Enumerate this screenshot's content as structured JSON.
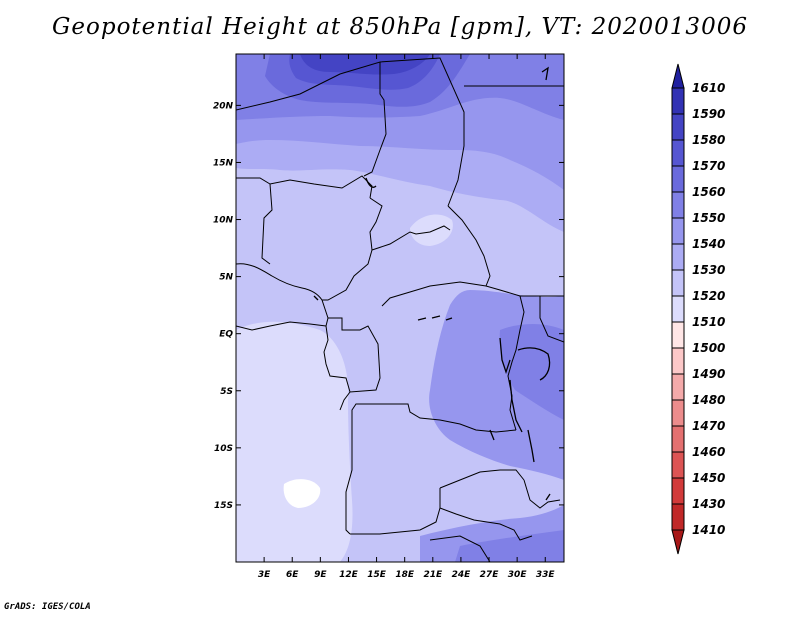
{
  "title": "Geopotential Height at 850hPa [gpm], VT: 2020013006",
  "footer": "GrADS: IGES/COLA",
  "map": {
    "variable": "Geopotential Height",
    "level": "850hPa",
    "units": "gpm",
    "valid_time": "2020013006",
    "lon_range": [
      0,
      35
    ],
    "lat_range": [
      -20,
      24.5
    ],
    "x_ticks": [
      {
        "value": 3,
        "label": "3E"
      },
      {
        "value": 6,
        "label": "6E"
      },
      {
        "value": 9,
        "label": "9E"
      },
      {
        "value": 12,
        "label": "12E"
      },
      {
        "value": 15,
        "label": "15E"
      },
      {
        "value": 18,
        "label": "18E"
      },
      {
        "value": 21,
        "label": "21E"
      },
      {
        "value": 24,
        "label": "24E"
      },
      {
        "value": 27,
        "label": "27E"
      },
      {
        "value": 30,
        "label": "30E"
      },
      {
        "value": 33,
        "label": "33E"
      }
    ],
    "y_ticks": [
      {
        "value": 20,
        "label": "20N"
      },
      {
        "value": 15,
        "label": "15N"
      },
      {
        "value": 10,
        "label": "10N"
      },
      {
        "value": 5,
        "label": "5N"
      },
      {
        "value": 0,
        "label": "EQ"
      },
      {
        "value": -5,
        "label": "5S"
      },
      {
        "value": -10,
        "label": "10S"
      },
      {
        "value": -15,
        "label": "15S"
      }
    ]
  },
  "colorbar": {
    "labels": [
      "1610",
      "1590",
      "1580",
      "1570",
      "1560",
      "1550",
      "1540",
      "1530",
      "1520",
      "1510",
      "1500",
      "1490",
      "1480",
      "1470",
      "1460",
      "1450",
      "1430",
      "1410"
    ],
    "colors_top_to_bottom": [
      "#2020a0",
      "#3232b4",
      "#4444c4",
      "#5656d2",
      "#6a6adc",
      "#8080e6",
      "#9696ee",
      "#acacf4",
      "#c4c4f8",
      "#dcdcfc",
      "#ffe6e6",
      "#fcc8c8",
      "#f4aaaa",
      "#ec8c8c",
      "#e47070",
      "#dc5454",
      "#d23a3a",
      "#c02828",
      "#a81818"
    ]
  }
}
